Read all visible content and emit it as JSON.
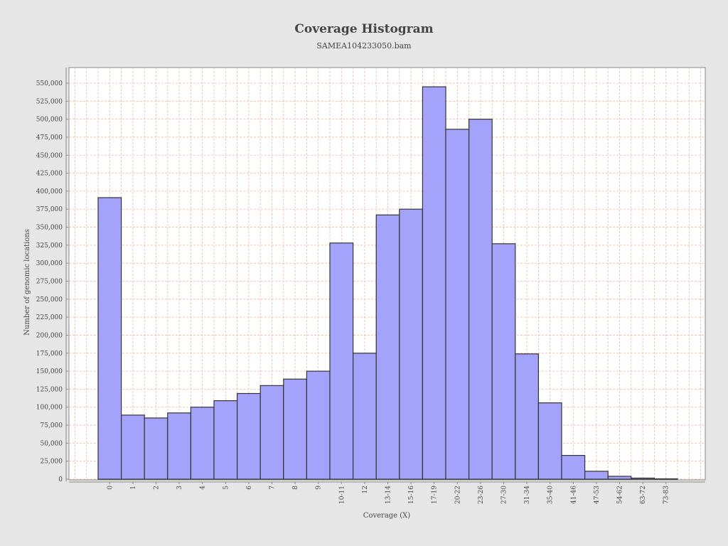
{
  "chart_data": {
    "type": "bar",
    "title": "Coverage Histogram",
    "subtitle": "SAMEA104233050.bam",
    "xlabel": "Coverage (X)",
    "ylabel": "Number of genomic locations",
    "categories": [
      "0",
      "1",
      "2",
      "3",
      "4",
      "5",
      "6",
      "7",
      "8",
      "9",
      "10-11",
      "12",
      "13-14",
      "15-16",
      "17-19",
      "20-22",
      "23-26",
      "27-30",
      "31-34",
      "35-40",
      "41-46",
      "47-53",
      "54-62",
      "63-72",
      "73-83"
    ],
    "values": [
      391000,
      89000,
      85000,
      92000,
      100000,
      109000,
      119000,
      130000,
      139000,
      150000,
      328000,
      175000,
      367000,
      375000,
      545000,
      486000,
      500000,
      327000,
      174000,
      106000,
      33000,
      11000,
      4000,
      1500,
      500
    ],
    "yticks": [
      "0",
      "25,000",
      "50,000",
      "75,000",
      "100,000",
      "125,000",
      "150,000",
      "175,000",
      "200,000",
      "225,000",
      "250,000",
      "275,000",
      "300,000",
      "325,000",
      "350,000",
      "375,000",
      "400,000",
      "425,000",
      "450,000",
      "475,000",
      "500,000",
      "525,000",
      "550,000"
    ],
    "ylim": [
      0,
      572000
    ],
    "grid": true,
    "bar_color": "#a3a3fb",
    "bar_edge_color": "#333333",
    "grid_color": "#f0b9a0",
    "plot_background": "#ffffff"
  }
}
